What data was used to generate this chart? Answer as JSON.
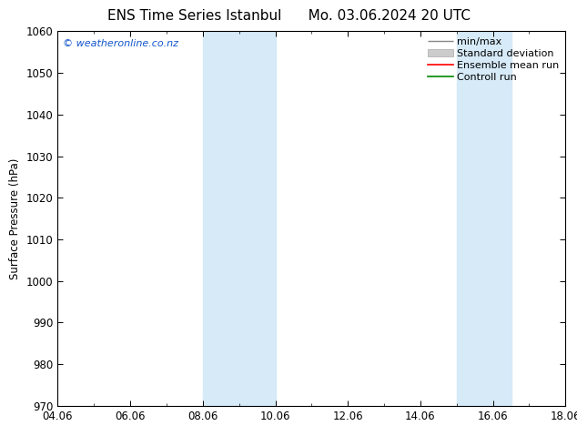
{
  "title": "ENS Time Series Istanbul      Mo. 03.06.2024 20 UTC",
  "ylabel": "Surface Pressure (hPa)",
  "ylim": [
    970,
    1060
  ],
  "yticks": [
    970,
    980,
    990,
    1000,
    1010,
    1020,
    1030,
    1040,
    1050,
    1060
  ],
  "xlim": [
    0,
    14
  ],
  "xtick_positions": [
    0,
    2,
    4,
    6,
    8,
    10,
    12,
    14
  ],
  "xtick_labels": [
    "04.06",
    "06.06",
    "08.06",
    "10.06",
    "12.06",
    "14.06",
    "16.06",
    "18.06"
  ],
  "shaded_regions": [
    {
      "xstart": 4.0,
      "xend": 6.0,
      "color": "#d6eaf8"
    },
    {
      "xstart": 11.0,
      "xend": 12.5,
      "color": "#d6eaf8"
    }
  ],
  "watermark": "© weatheronline.co.nz",
  "legend_items": [
    {
      "label": "min/max",
      "color": "#999999",
      "style": "line"
    },
    {
      "label": "Standard deviation",
      "color": "#cccccc",
      "style": "fill"
    },
    {
      "label": "Ensemble mean run",
      "color": "#ff0000",
      "style": "line"
    },
    {
      "label": "Controll run",
      "color": "#008800",
      "style": "line"
    }
  ],
  "background_color": "#ffffff",
  "font_size_title": 11,
  "font_size_axis": 8.5,
  "font_size_legend": 8,
  "font_size_watermark": 8
}
